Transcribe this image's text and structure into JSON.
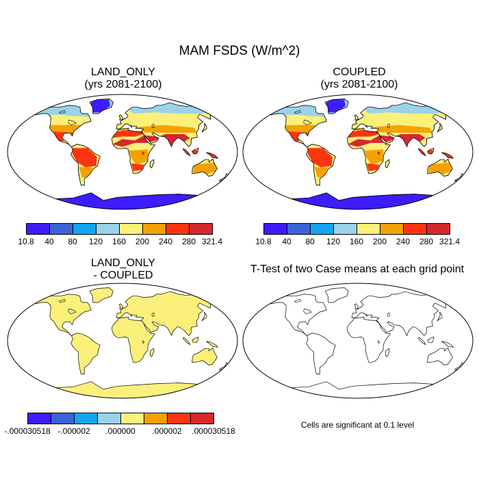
{
  "figure_title": "MAM FSDS (W/m^2)",
  "panels": {
    "land_only": {
      "title_line1": "LAND_ONLY",
      "title_line2": "(yrs 2081-2100)"
    },
    "coupled": {
      "title_line1": "COUPLED",
      "title_line2": "(yrs 2081-2100)"
    },
    "difference": {
      "title_line1": "LAND_ONLY",
      "title_line2": "- COUPLED"
    },
    "ttest": {
      "title": "T-Test of two Case means at each grid point",
      "note": "Cells are significant at 0.1 level"
    }
  },
  "colorbars": {
    "field": {
      "colors": [
        "#3d1cff",
        "#3a64d6",
        "#13a6f0",
        "#9ad2ea",
        "#fbf07a",
        "#f5a200",
        "#fd3410",
        "#d7282e"
      ],
      "labels": [
        "10.8",
        "40",
        "80",
        "120",
        "160",
        "200",
        "240",
        "280",
        "321.4"
      ]
    },
    "difference": {
      "colors": [
        "#3d1cff",
        "#3a64d6",
        "#13a6f0",
        "#9ad2ea",
        "#fbf07a",
        "#f5a200",
        "#fd3410",
        "#d7282e"
      ],
      "labels": [
        "-.000030518",
        "-.000002",
        ".000000",
        ".000002",
        ".000030518"
      ]
    }
  },
  "land_colors": {
    "polar": "#3d1cff",
    "subpolar": "#9ad2ea",
    "mid": "#fbf07a",
    "warm": "#f5a200",
    "hot": "#fd3410",
    "hottest": "#d7282e",
    "difference_fill": "#fbf07a"
  }
}
